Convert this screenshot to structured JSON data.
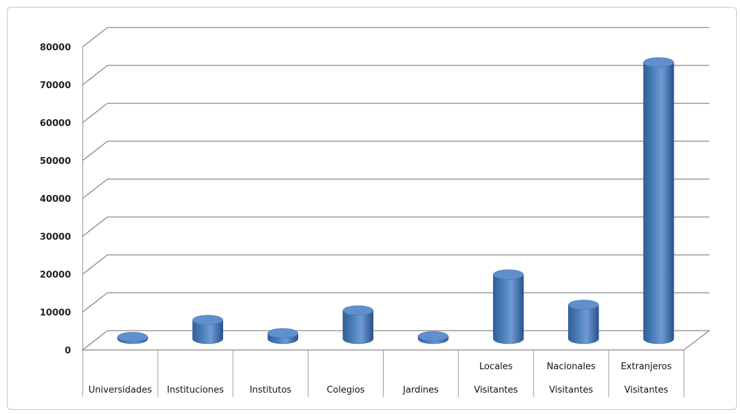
{
  "chart_data": {
    "type": "bar",
    "categories": [
      [
        "Universidades"
      ],
      [
        "Instituciones"
      ],
      [
        "Institutos"
      ],
      [
        "Colegios"
      ],
      [
        "Jardines"
      ],
      [
        "Locales",
        "Visitantes"
      ],
      [
        "Nacionales",
        "Visitantes"
      ],
      [
        "Extranjeros",
        "Visitantes"
      ]
    ],
    "values": [
      500,
      5000,
      1500,
      7500,
      700,
      17000,
      9000,
      73000
    ],
    "ylim": [
      0,
      80000
    ],
    "yticks": [
      0,
      10000,
      20000,
      30000,
      40000,
      50000,
      60000,
      70000,
      80000
    ],
    "grid": true,
    "style": "3d-cylinder",
    "bar_color": "#4f81bd"
  }
}
